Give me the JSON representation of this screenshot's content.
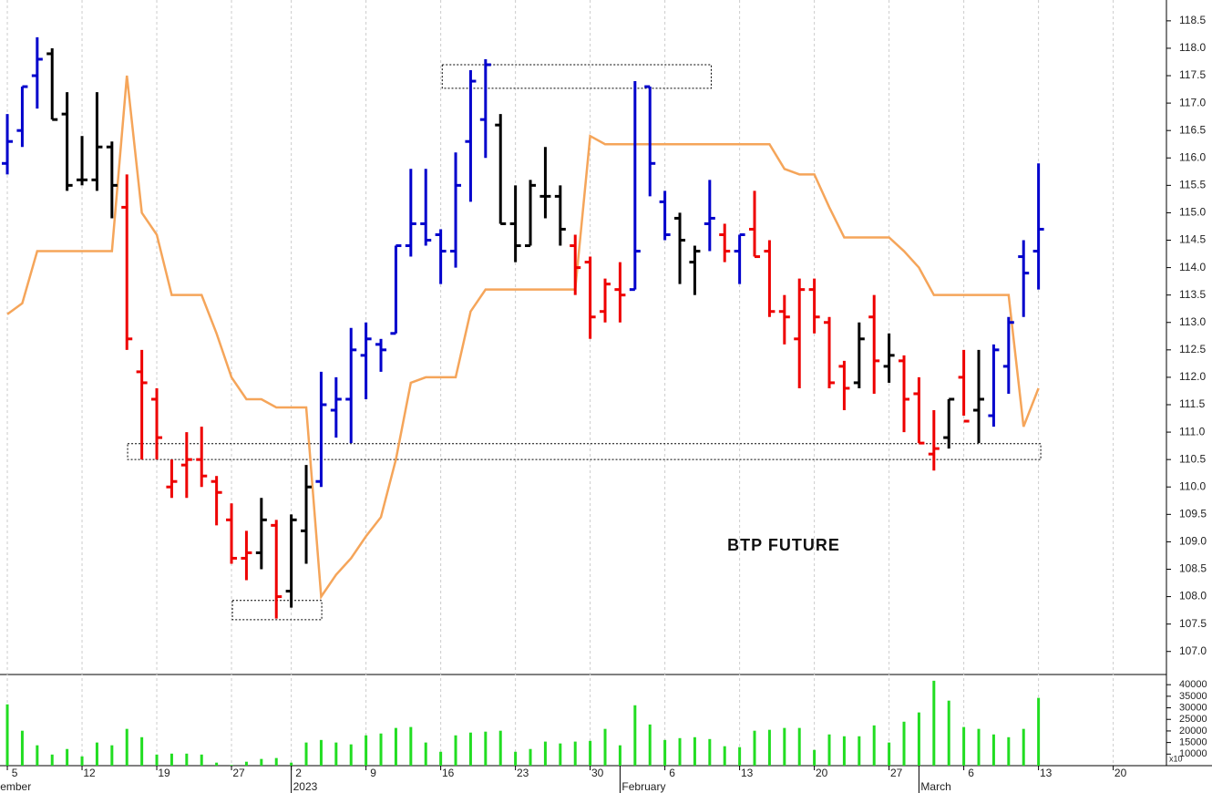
{
  "chart_data": [
    {
      "type": "ohlc",
      "title": "BTP FUTURE",
      "x": [
        0,
        1,
        2,
        3,
        4,
        5,
        6,
        7,
        8,
        9,
        10,
        11,
        12,
        13,
        14,
        15,
        16,
        17,
        18,
        19,
        20,
        21,
        22,
        23,
        24,
        25,
        26,
        27,
        28,
        29,
        30,
        31,
        32,
        33,
        34,
        35,
        36,
        37,
        38,
        39,
        40,
        41,
        42,
        43,
        44,
        45,
        46,
        47,
        48,
        49,
        50,
        51,
        52,
        53,
        54,
        55,
        56,
        57,
        58,
        59,
        60,
        61,
        62,
        63,
        64,
        65,
        66,
        67,
        68,
        69
      ],
      "open": [
        115.9,
        116.5,
        117.5,
        117.9,
        116.8,
        115.6,
        115.6,
        116.2,
        115.1,
        112.1,
        111.6,
        110.0,
        110.4,
        110.5,
        110.1,
        109.4,
        108.7,
        108.8,
        109.3,
        108.1,
        109.2,
        110.1,
        111.4,
        111.6,
        112.4,
        112.6,
        112.8,
        114.4,
        114.8,
        114.6,
        114.3,
        116.3,
        116.7,
        116.6,
        114.8,
        114.4,
        115.3,
        115.3,
        114.4,
        114.1,
        113.2,
        113.6,
        113.6,
        117.3,
        115.2,
        114.9,
        114.1,
        114.8,
        114.6,
        114.3,
        114.7,
        114.3,
        113.2,
        112.7,
        113.6,
        113.0,
        112.2,
        111.9,
        113.1,
        112.2,
        112.3,
        111.7,
        110.6,
        110.9,
        112.0,
        111.4,
        111.3,
        112.2,
        114.2,
        114.3
      ],
      "high": [
        116.8,
        117.3,
        118.2,
        118.0,
        117.2,
        116.4,
        117.2,
        116.3,
        115.7,
        112.5,
        111.8,
        110.5,
        111.0,
        111.1,
        110.2,
        109.7,
        109.2,
        109.8,
        109.4,
        109.5,
        110.4,
        112.1,
        112.0,
        112.9,
        113.0,
        112.7,
        114.4,
        115.8,
        115.8,
        114.7,
        116.1,
        117.6,
        117.8,
        116.8,
        115.5,
        115.6,
        116.2,
        115.5,
        114.6,
        114.2,
        113.8,
        114.1,
        117.4,
        117.3,
        115.4,
        115.0,
        114.4,
        115.6,
        114.8,
        114.6,
        115.4,
        114.5,
        113.5,
        113.8,
        113.8,
        113.1,
        112.3,
        113.0,
        113.5,
        112.8,
        112.4,
        112.0,
        111.4,
        111.6,
        112.5,
        112.5,
        112.6,
        113.1,
        114.5,
        115.9
      ],
      "low": [
        115.7,
        116.2,
        116.9,
        116.7,
        115.4,
        115.5,
        115.4,
        114.9,
        112.5,
        110.5,
        110.5,
        109.8,
        109.8,
        110.0,
        109.3,
        108.6,
        108.3,
        108.5,
        107.6,
        107.8,
        108.6,
        110.0,
        110.9,
        110.8,
        111.6,
        112.1,
        112.8,
        114.2,
        114.4,
        113.7,
        114.0,
        115.2,
        116.0,
        114.8,
        114.1,
        114.4,
        114.9,
        114.4,
        113.5,
        112.7,
        113.0,
        113.0,
        113.6,
        115.3,
        114.5,
        113.7,
        113.5,
        114.3,
        114.1,
        113.7,
        114.2,
        113.1,
        112.6,
        111.8,
        112.8,
        111.8,
        111.4,
        111.8,
        111.7,
        111.9,
        111.0,
        110.8,
        110.3,
        110.7,
        111.3,
        110.8,
        111.1,
        111.7,
        113.1,
        113.6
      ],
      "close": [
        116.3,
        117.3,
        117.8,
        116.7,
        115.5,
        115.6,
        116.2,
        115.5,
        112.7,
        111.9,
        110.9,
        110.1,
        110.5,
        110.2,
        109.9,
        108.7,
        108.8,
        109.4,
        108.0,
        109.4,
        110.0,
        111.5,
        111.6,
        112.5,
        112.7,
        112.5,
        114.4,
        114.8,
        114.5,
        114.3,
        115.5,
        117.4,
        117.7,
        114.8,
        114.4,
        115.5,
        115.3,
        114.7,
        114.0,
        113.1,
        113.7,
        113.5,
        114.3,
        115.9,
        114.6,
        114.5,
        114.3,
        114.9,
        114.3,
        114.6,
        114.2,
        113.2,
        113.1,
        113.6,
        113.1,
        111.9,
        111.8,
        112.7,
        112.3,
        112.4,
        111.6,
        110.8,
        110.7,
        111.6,
        111.2,
        111.6,
        112.5,
        113.0,
        113.9,
        114.7
      ],
      "colors": [
        "#0000cc",
        "#0000cc",
        "#0000cc",
        "#000000",
        "#000000",
        "#000000",
        "#000000",
        "#000000",
        "#ee0000",
        "#ee0000",
        "#ee0000",
        "#ee0000",
        "#ee0000",
        "#ee0000",
        "#ee0000",
        "#ee0000",
        "#ee0000",
        "#000000",
        "#ee0000",
        "#000000",
        "#000000",
        "#0000cc",
        "#0000cc",
        "#0000cc",
        "#0000cc",
        "#0000cc",
        "#0000cc",
        "#0000cc",
        "#0000cc",
        "#0000cc",
        "#0000cc",
        "#0000cc",
        "#0000cc",
        "#000000",
        "#000000",
        "#000000",
        "#000000",
        "#000000",
        "#ee0000",
        "#ee0000",
        "#ee0000",
        "#ee0000",
        "#0000cc",
        "#0000cc",
        "#0000cc",
        "#000000",
        "#000000",
        "#0000cc",
        "#ee0000",
        "#0000cc",
        "#ee0000",
        "#ee0000",
        "#ee0000",
        "#ee0000",
        "#ee0000",
        "#ee0000",
        "#ee0000",
        "#000000",
        "#ee0000",
        "#000000",
        "#ee0000",
        "#ee0000",
        "#ee0000",
        "#000000",
        "#ee0000",
        "#000000",
        "#0000cc",
        "#0000cc",
        "#0000cc",
        "#0000cc"
      ],
      "line": {
        "color": "#f5a55a",
        "values": [
          113.15,
          113.35,
          114.3,
          114.3,
          114.3,
          114.3,
          114.3,
          114.3,
          117.5,
          115.0,
          114.6,
          113.5,
          113.5,
          113.5,
          112.8,
          112.0,
          111.6,
          111.6,
          111.45,
          111.45,
          111.45,
          108.0,
          108.4,
          108.7,
          109.1,
          109.45,
          110.5,
          111.9,
          112.0,
          112.0,
          112.0,
          113.2,
          113.6,
          113.6,
          113.6,
          113.6,
          113.6,
          113.6,
          113.6,
          116.4,
          116.25,
          116.25,
          116.25,
          116.25,
          116.25,
          116.25,
          116.25,
          116.25,
          116.25,
          116.25,
          116.25,
          116.25,
          115.8,
          115.7,
          115.7,
          115.1,
          114.55,
          114.55,
          114.55,
          114.55,
          114.3,
          114.0,
          113.5,
          113.5,
          113.5,
          113.5,
          113.5,
          113.5,
          111.1,
          111.8
        ]
      },
      "zones": [
        {
          "x": [
            29.1,
            47.1
          ],
          "y": [
            117.27,
            117.7
          ]
        },
        {
          "x": [
            8.05,
            69.15
          ],
          "y": [
            110.5,
            110.79
          ]
        },
        {
          "x": [
            15.06,
            21.04
          ],
          "y": [
            107.58,
            107.93
          ]
        }
      ],
      "xlim": [
        -0.49,
        77.56
      ],
      "ylim": [
        106.58,
        118.88
      ],
      "yticks": [
        {
          "value": 107,
          "label": "107.0"
        },
        107.5,
        {
          "value": 108,
          "label": "108.0"
        },
        108.5,
        {
          "value": 109,
          "label": "109.0"
        },
        109.5,
        {
          "value": 110,
          "label": "110.0"
        },
        110.5,
        {
          "value": 111,
          "label": "111.0"
        },
        111.5,
        {
          "value": 112,
          "label": "112.0"
        },
        112.5,
        {
          "value": 113,
          "label": "113.0"
        },
        113.5,
        {
          "value": 114,
          "label": "114.0"
        },
        114.5,
        {
          "value": 115,
          "label": "115.0"
        },
        115.5,
        {
          "value": 116,
          "label": "116.0"
        },
        116.5,
        {
          "value": 117,
          "label": "117.0"
        },
        117.5,
        {
          "value": 118,
          "label": "118.0"
        },
        118.5
      ]
    },
    {
      "type": "volume",
      "color": "#22dd22",
      "values": [
        31500,
        20100,
        13800,
        9800,
        12200,
        9000,
        15000,
        13800,
        20900,
        17300,
        9800,
        10200,
        10200,
        9800,
        6300,
        5300,
        6700,
        7900,
        8300,
        6300,
        15000,
        16100,
        15000,
        14200,
        18100,
        18900,
        21300,
        21700,
        15000,
        11000,
        18100,
        19300,
        19700,
        20100,
        11000,
        12200,
        15400,
        14600,
        15400,
        15700,
        20900,
        13800,
        31100,
        22800,
        16100,
        16900,
        17300,
        16500,
        13400,
        13000,
        20100,
        20500,
        21300,
        21300,
        11800,
        18500,
        17700,
        17700,
        22400,
        15000,
        24000,
        28000,
        41700,
        33100,
        21700,
        20900,
        18500,
        17300,
        20900,
        34300
      ],
      "ylim": [
        5000,
        44400
      ],
      "yticks": [
        10000,
        15000,
        20000,
        25000,
        30000,
        35000,
        40000
      ],
      "unit_label": "x10",
      "xticks": [
        {
          "value": 0,
          "label": "5"
        },
        {
          "value": 5,
          "label": "12"
        },
        {
          "value": 10,
          "label": "19"
        },
        {
          "value": 15,
          "label": "27"
        },
        {
          "value": 19,
          "label": "2"
        },
        {
          "value": 24,
          "label": "9"
        },
        {
          "value": 29,
          "label": "16"
        },
        {
          "value": 34,
          "label": "23"
        },
        {
          "value": 39,
          "label": "30"
        },
        {
          "value": 44,
          "label": "6"
        },
        {
          "value": 49,
          "label": "13"
        },
        {
          "value": 54,
          "label": "20"
        },
        {
          "value": 59,
          "label": "27"
        },
        {
          "value": 64,
          "label": "6"
        },
        {
          "value": 69,
          "label": "13"
        },
        {
          "value": 74,
          "label": "20"
        }
      ],
      "month_labels": [
        {
          "value": -0.6,
          "label": "ember"
        },
        {
          "value": 19,
          "label": "2023"
        },
        {
          "value": 41,
          "label": "February"
        },
        {
          "value": 61,
          "label": "March"
        }
      ]
    }
  ]
}
